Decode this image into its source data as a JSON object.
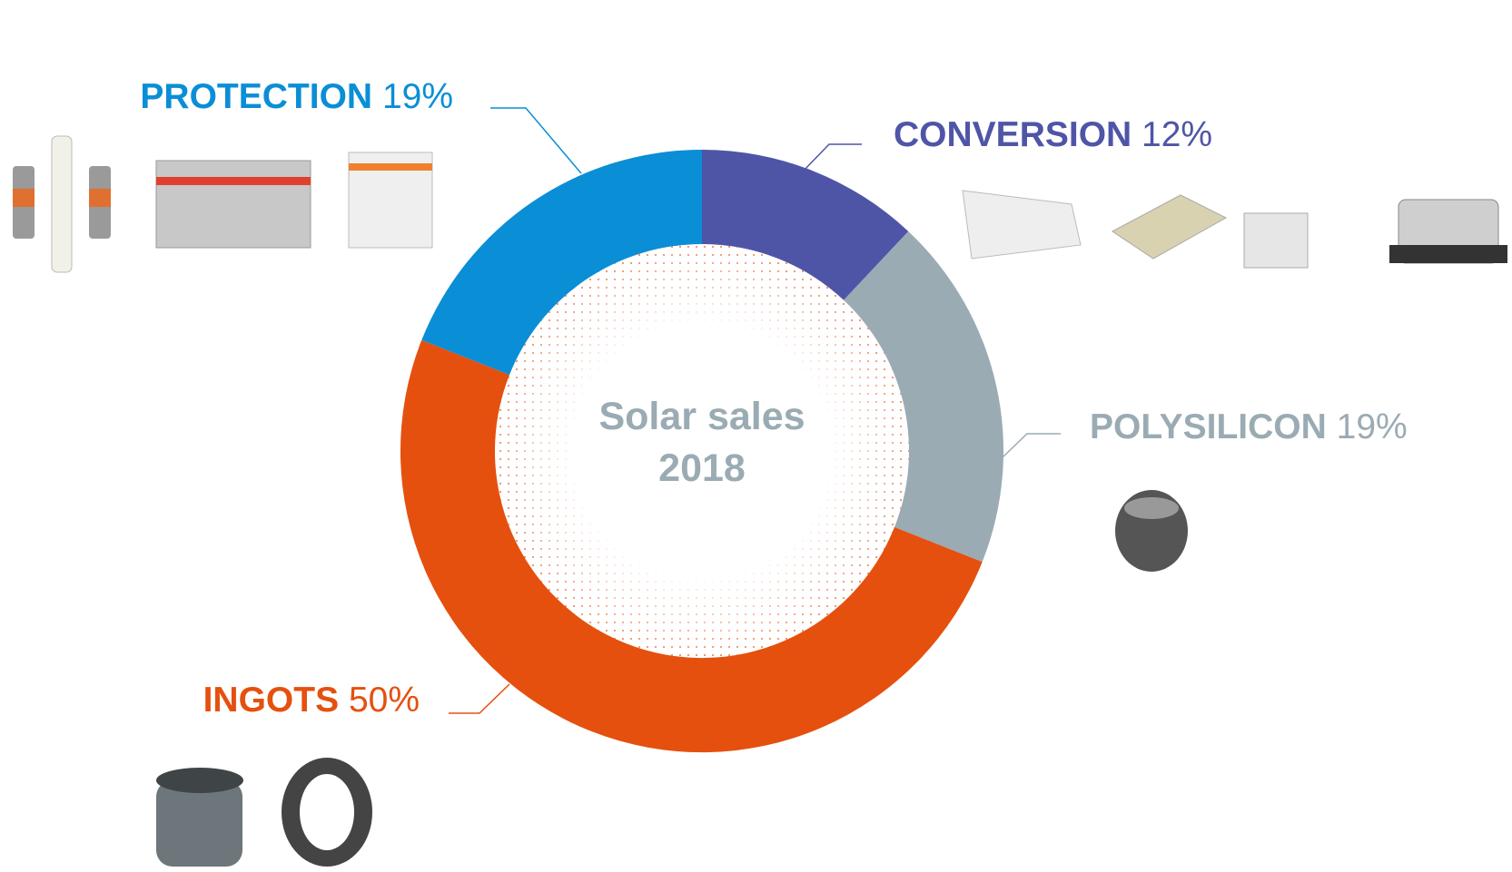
{
  "chart_data": {
    "type": "donut",
    "center_text": [
      "Solar sales",
      "2018"
    ],
    "categories": [
      "CONVERSION",
      "POLYSILICON",
      "INGOTS",
      "PROTECTION"
    ],
    "values": [
      12,
      19,
      50,
      19
    ],
    "value_labels": [
      "12%",
      "19%",
      "50%",
      "19%"
    ],
    "colors": [
      "#4f55a6",
      "#9aabb3",
      "#e5500f",
      "#0a8ed6"
    ]
  }
}
